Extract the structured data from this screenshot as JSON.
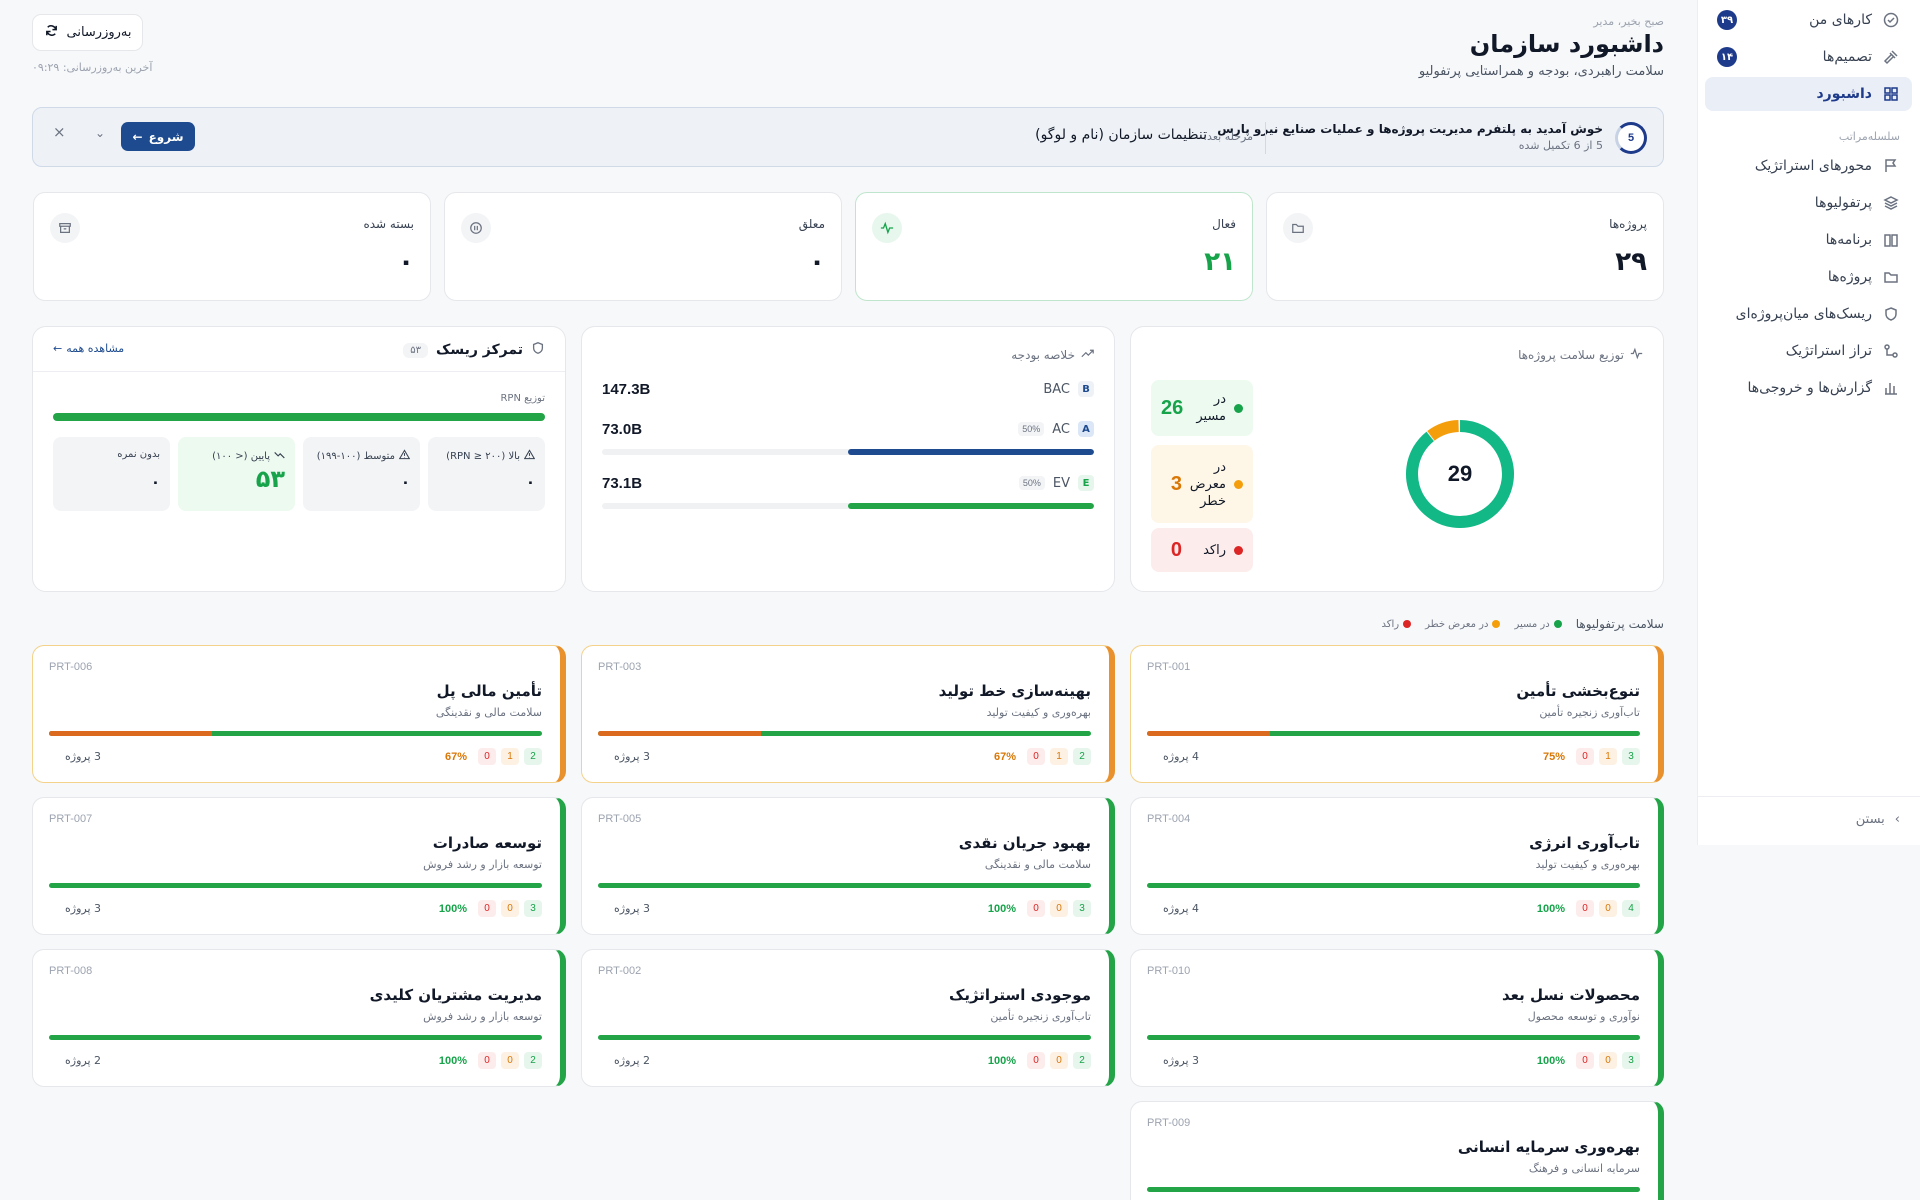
{
  "sidebar": {
    "top_items": [
      {
        "label": "کارهای من",
        "icon": "check-circle-icon",
        "badge": "۳۹"
      },
      {
        "label": "تصمیم‌ها",
        "icon": "gavel-icon",
        "badge": "۱۴"
      },
      {
        "label": "داشبورد",
        "icon": "grid-icon",
        "active": true
      }
    ],
    "section_label": "سلسله‌مراتب",
    "items": [
      {
        "label": "محورهای استراتژیک",
        "icon": "flag-icon"
      },
      {
        "label": "پرتفولیوها",
        "icon": "layers-icon"
      },
      {
        "label": "برنامه‌ها",
        "icon": "book-icon"
      },
      {
        "label": "پروژه‌ها",
        "icon": "folder-icon"
      },
      {
        "label": "ریسک‌های میان‌پروژه‌ای",
        "icon": "shield-icon"
      },
      {
        "label": "تراز استراتژیک",
        "icon": "branch-icon"
      },
      {
        "label": "گزارش‌ها و خروجی‌ها",
        "icon": "bar-chart-icon"
      }
    ],
    "close_label": "بستن"
  },
  "header": {
    "greeting": "صبح بخیر، مدیر",
    "title": "داشبورد سازمان",
    "subtitle": "سلامت راهبردی، بودجه و همراستایی پرتفولیو",
    "refresh_label": "به‌روزرسانی",
    "last_update": "آخرین به‌روزرسانی: ۰۹:۲۹"
  },
  "banner": {
    "step_number": "5",
    "title": "خوش آمدید به پلتفرم مدیریت پروژه‌ها و عملیات صنایع نیرو پارس",
    "progress": "5 از 6 تکمیل شده",
    "stage_label": "مرحله بعد:",
    "stage_name": "تنظیمات سازمان (نام و لوگو)",
    "start_label": "شروع"
  },
  "stats": [
    {
      "label": "پروژه‌ها",
      "value": "۲۹",
      "icon": "folder-open-icon"
    },
    {
      "label": "فعال",
      "value": "۲۱",
      "icon": "activity-icon"
    },
    {
      "label": "معلق",
      "value": "۰",
      "icon": "pause-icon"
    },
    {
      "label": "بسته شده",
      "value": "۰",
      "icon": "archive-icon"
    }
  ],
  "health": {
    "title": "توزیع سلامت پروژه‌ها",
    "total": "29",
    "items": [
      {
        "label": "در مسیر",
        "count": 26,
        "color": "#16a34a",
        "bg": "#ecfaf0",
        "text": "#16a34a"
      },
      {
        "label": "در معرض خطر",
        "count": 3,
        "color": "#f59e0b",
        "bg": "#fef6e7",
        "text": "#d97706"
      },
      {
        "label": "راکد",
        "count": 0,
        "color": "#dc2626",
        "bg": "#fdecec",
        "text": "#dc2626"
      }
    ]
  },
  "budget": {
    "title": "خلاصه بودجه",
    "rows": [
      {
        "tag": "B",
        "label": "BAC",
        "value": "147.3B",
        "tag_bg": "#eef2f7",
        "tag_color": "#1e4b8f"
      },
      {
        "tag": "A",
        "label": "AC",
        "pct": "50%",
        "value": "73.0B",
        "fill": 0.5,
        "color": "#1e4b8f",
        "tag_bg": "#dbe7f7",
        "tag_color": "#1e4b8f"
      },
      {
        "tag": "E",
        "label": "EV",
        "pct": "50%",
        "value": "73.1B",
        "fill": 0.5,
        "color": "#22a447",
        "tag_bg": "#e7f6ec",
        "tag_color": "#16a34a"
      }
    ]
  },
  "risk": {
    "title": "تمرکز ریسک",
    "count": "۵۳",
    "view_all": "مشاهده همه",
    "rpn_label": "توزیع RPN",
    "boxes": [
      {
        "label": "بالا (RPN ≥ ۲۰۰)",
        "value": "۰",
        "icon": "alert-icon"
      },
      {
        "label": "متوسط (۱۰۰-۱۹۹)",
        "value": "۰",
        "icon": "alert-icon"
      },
      {
        "label": "پایین (< ۱۰۰)",
        "value": "۵۳",
        "icon": "trend-icon",
        "low": true
      },
      {
        "label": "بدون نمره",
        "value": "۰"
      }
    ]
  },
  "portfolio_health": {
    "title": "سلامت پرتفولیوها",
    "legend": [
      {
        "label": "در مسیر",
        "color": "#16a34a"
      },
      {
        "label": "در معرض خطر",
        "color": "#f59e0b"
      },
      {
        "label": "راکد",
        "color": "#dc2626"
      }
    ]
  },
  "portfolios": [
    {
      "code": "PRT-001",
      "name": "تنوع‌بخشی تأمین",
      "category": "تاب‌آوری زنجیره تأمین",
      "green": "3",
      "orange": "1",
      "red": "0",
      "pct": "75%",
      "projects": "4 پروژه",
      "ratio": 0.75,
      "risk": true
    },
    {
      "code": "PRT-003",
      "name": "بهینه‌سازی خط تولید",
      "category": "بهره‌وری و کیفیت تولید",
      "green": "2",
      "orange": "1",
      "red": "0",
      "pct": "67%",
      "projects": "3 پروژه",
      "ratio": 0.67,
      "risk": true
    },
    {
      "code": "PRT-006",
      "name": "تأمین مالی پل",
      "category": "سلامت مالی و نقدینگی",
      "green": "2",
      "orange": "1",
      "red": "0",
      "pct": "67%",
      "projects": "3 پروژه",
      "ratio": 0.67,
      "risk": true
    },
    {
      "code": "PRT-004",
      "name": "تاب‌آوری انرژی",
      "category": "بهره‌وری و کیفیت تولید",
      "green": "4",
      "orange": "0",
      "red": "0",
      "pct": "100%",
      "projects": "4 پروژه",
      "ratio": 1
    },
    {
      "code": "PRT-005",
      "name": "بهبود جریان نقدی",
      "category": "سلامت مالی و نقدینگی",
      "green": "3",
      "orange": "0",
      "red": "0",
      "pct": "100%",
      "projects": "3 پروژه",
      "ratio": 1
    },
    {
      "code": "PRT-007",
      "name": "توسعه صادرات",
      "category": "توسعه بازار و رشد فروش",
      "green": "3",
      "orange": "0",
      "red": "0",
      "pct": "100%",
      "projects": "3 پروژه",
      "ratio": 1
    },
    {
      "code": "PRT-010",
      "name": "محصولات نسل بعد",
      "category": "نوآوری و توسعه محصول",
      "green": "3",
      "orange": "0",
      "red": "0",
      "pct": "100%",
      "projects": "3 پروژه",
      "ratio": 1
    },
    {
      "code": "PRT-002",
      "name": "موجودی استراتژیک",
      "category": "تاب‌آوری زنجیره تأمین",
      "green": "2",
      "orange": "0",
      "red": "0",
      "pct": "100%",
      "projects": "2 پروژه",
      "ratio": 1
    },
    {
      "code": "PRT-008",
      "name": "مدیریت مشتریان کلیدی",
      "category": "توسعه بازار و رشد فروش",
      "green": "2",
      "orange": "0",
      "red": "0",
      "pct": "100%",
      "projects": "2 پروژه",
      "ratio": 1
    },
    {
      "code": "PRT-009",
      "name": "بهره‌وری سرمایه انسانی",
      "category": "سرمایه انسانی و فرهنگ",
      "ratio": 1
    }
  ]
}
